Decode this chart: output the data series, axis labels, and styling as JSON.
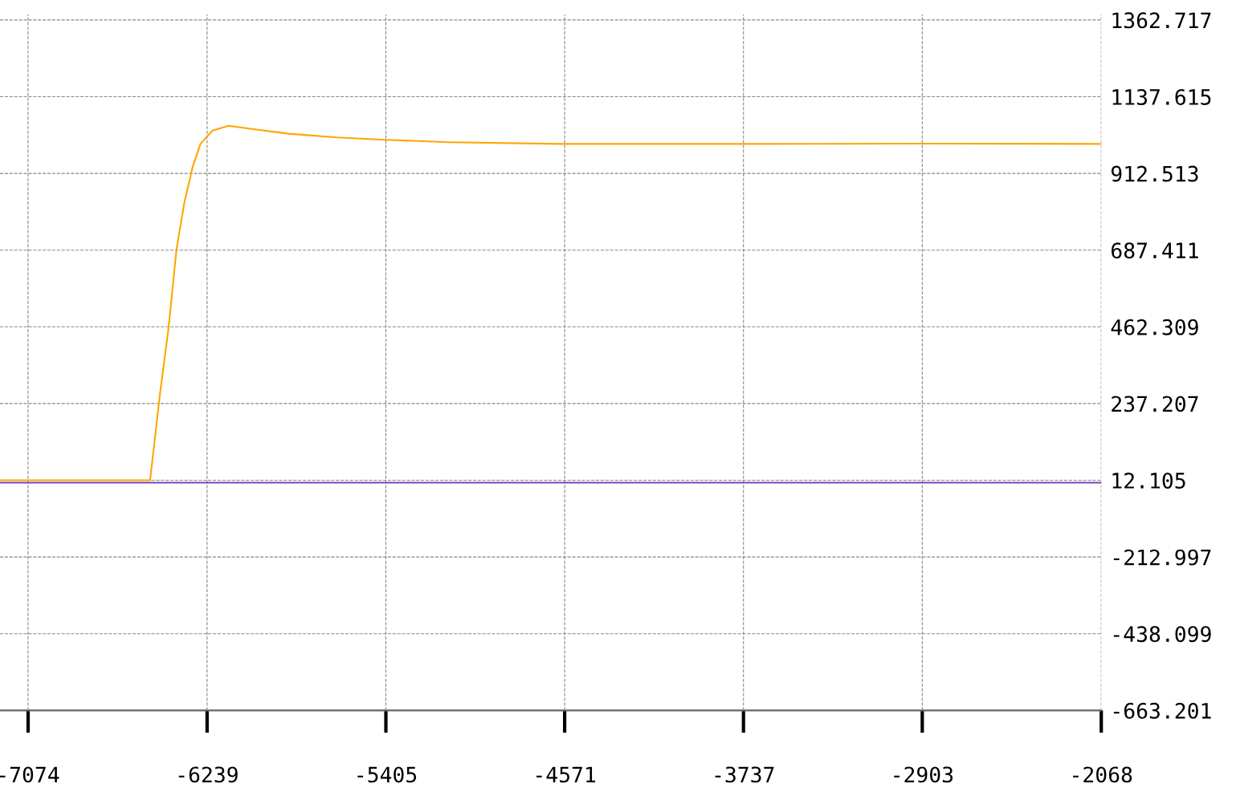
{
  "chart_data": {
    "type": "line",
    "series": [
      {
        "color": "#ffa500",
        "x": [
          -7205,
          -6505,
          -6457,
          -6419,
          -6382,
          -6345,
          -6307,
          -6270,
          -6214,
          -6139,
          -6008,
          -5858,
          -5634,
          -5409,
          -5110,
          -4586,
          -3737,
          -2903,
          -2070
        ],
        "values": [
          12,
          12,
          274,
          458,
          688,
          827,
          930,
          999,
          1038,
          1052,
          1041,
          1029,
          1018,
          1011,
          1004,
          999,
          999,
          1000,
          999
        ]
      },
      {
        "color": "#7f3fbf",
        "x": [
          -7205,
          -2070
        ],
        "values": [
          5,
          5
        ]
      }
    ],
    "xlim": [
      -7205,
      -2068
    ],
    "xticks": [
      -7074,
      -6239,
      -5405,
      -4571,
      -3737,
      -2903,
      -2068
    ],
    "ylim": [
      -663.201,
      1379
    ],
    "yticks": [
      {
        "value": -663.201,
        "label": "-663.201"
      },
      {
        "value": -438.099,
        "label": "-438.099"
      },
      {
        "value": -212.997,
        "label": "-212.997"
      },
      {
        "value": 12.105,
        "label": "12.105"
      },
      {
        "value": 237.207,
        "label": "237.207"
      },
      {
        "value": 462.309,
        "label": "462.309"
      },
      {
        "value": 687.411,
        "label": "687.411"
      },
      {
        "value": 912.513,
        "label": "912.513"
      },
      {
        "value": 1137.615,
        "label": "1137.615"
      },
      {
        "value": 1362.717,
        "label": "1362.717"
      }
    ],
    "grid": true,
    "line_style": "solid",
    "marker": "none",
    "legend": false
  }
}
